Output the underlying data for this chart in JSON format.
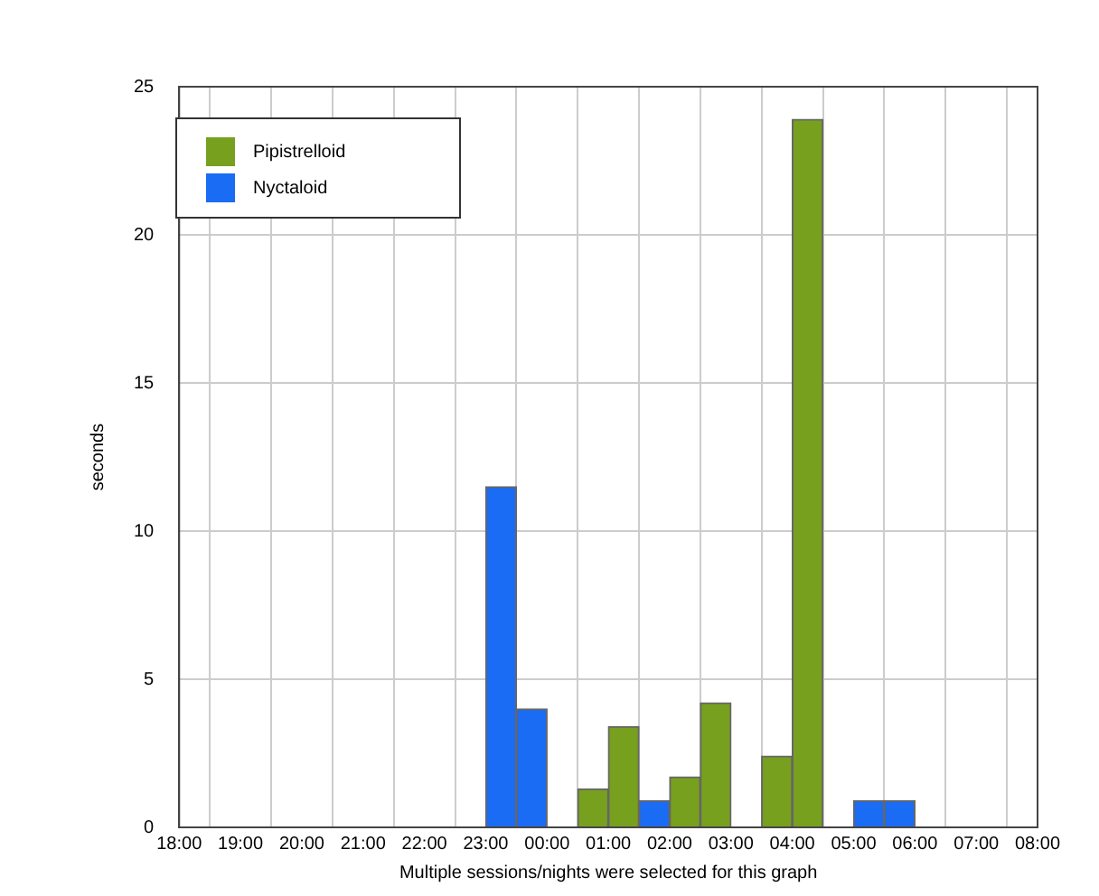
{
  "chart_data": {
    "type": "bar",
    "xlabel": "Multiple sessions/nights were selected for this graph",
    "ylabel": "seconds",
    "xlim": [
      "2000-01-01T18:00",
      "2000-01-02T08:00"
    ],
    "xticks": [
      {
        "value": "2000-01-01T18:00",
        "label": "18:00"
      },
      {
        "value": "2000-01-01T19:00",
        "label": "19:00"
      },
      {
        "value": "2000-01-01T20:00",
        "label": "20:00"
      },
      {
        "value": "2000-01-01T21:00",
        "label": "21:00"
      },
      {
        "value": "2000-01-01T22:00",
        "label": "22:00"
      },
      {
        "value": "2000-01-01T23:00",
        "label": "23:00"
      },
      {
        "value": "2000-01-02T00:00",
        "label": "00:00"
      },
      {
        "value": "2000-01-02T01:00",
        "label": "01:00"
      },
      {
        "value": "2000-01-02T02:00",
        "label": "02:00"
      },
      {
        "value": "2000-01-02T03:00",
        "label": "03:00"
      },
      {
        "value": "2000-01-02T04:00",
        "label": "04:00"
      },
      {
        "value": "2000-01-02T05:00",
        "label": "05:00"
      },
      {
        "value": "2000-01-02T06:00",
        "label": "06:00"
      },
      {
        "value": "2000-01-02T07:00",
        "label": "07:00"
      },
      {
        "value": "2000-01-02T08:00",
        "label": "08:00"
      }
    ],
    "ylim": [
      0,
      25
    ],
    "yticks": [
      0,
      5,
      10,
      15,
      20,
      25
    ],
    "grid": true,
    "legend": "top left",
    "series": [
      {
        "name": "Pipistrelloid",
        "color": "#77a01e",
        "x": [
          "2000-01-02T00:45",
          "2000-01-02T01:15",
          "2000-01-02T02:15",
          "2000-01-02T02:45",
          "2000-01-02T03:45",
          "2000-01-02T04:15"
        ],
        "values": [
          1.3,
          3.4,
          1.7,
          4.2,
          2.4,
          23.9
        ]
      },
      {
        "name": "Nyctaloid",
        "color": "#1a6cf5",
        "x": [
          "2000-01-01T23:15",
          "2000-01-01T23:45",
          "2000-01-02T01:45",
          "2000-01-02T05:15",
          "2000-01-02T05:45"
        ],
        "values": [
          11.5,
          4.0,
          0.9,
          0.9,
          0.9
        ]
      }
    ]
  }
}
